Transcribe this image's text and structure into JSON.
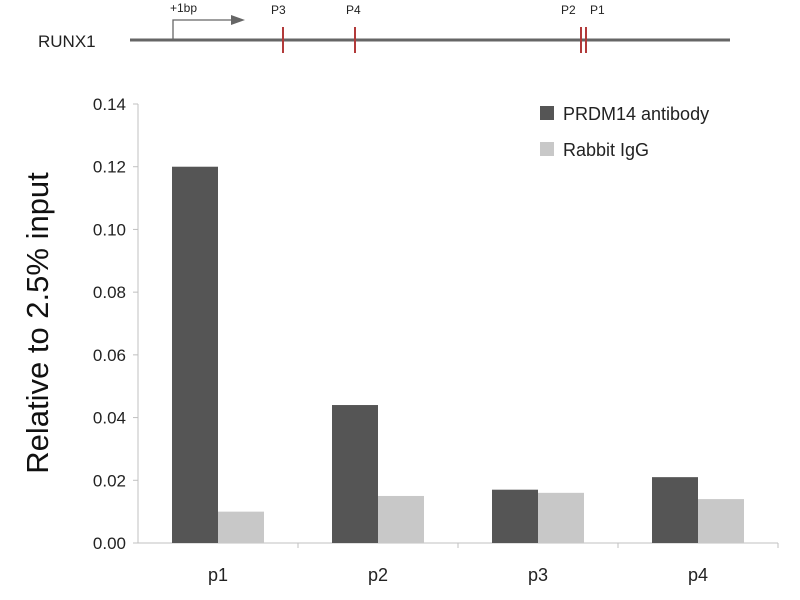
{
  "gene_map": {
    "gene_label": "RUNX1",
    "tss_label": "+1bp",
    "site_labels": [
      "P3",
      "P4",
      "P2",
      "P1"
    ]
  },
  "chart_data": {
    "type": "bar",
    "title": "",
    "xlabel": "",
    "ylabel": "Relative to 2.5% input",
    "categories": [
      "p1",
      "p2",
      "p3",
      "p4"
    ],
    "ylim": [
      0,
      0.14
    ],
    "yticks": [
      "0.00",
      "0.02",
      "0.04",
      "0.06",
      "0.08",
      "0.10",
      "0.12",
      "0.14"
    ],
    "grid": false,
    "legend_position": "top-right",
    "series": [
      {
        "name": "PRDM14 antibody",
        "color": "#555555",
        "values": [
          0.12,
          0.044,
          0.017,
          0.021
        ]
      },
      {
        "name": "Rabbit IgG",
        "color": "#c8c8c8",
        "values": [
          0.01,
          0.015,
          0.016,
          0.014
        ]
      }
    ]
  }
}
